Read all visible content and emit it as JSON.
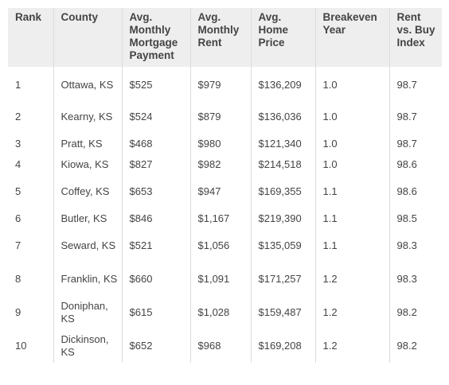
{
  "columns": {
    "rank": "Rank",
    "county": "County",
    "mortgage": "Avg. Monthly Mortgage Payment",
    "rent": "Avg. Monthly Rent",
    "home_price": "Avg. Home Price",
    "breakeven": "Breakeven Year",
    "index": "Rent vs. Buy Index"
  },
  "rows": [
    {
      "rank": "1",
      "county": "Ottawa, KS",
      "mortgage": "$525",
      "rent": "$979",
      "home_price": "$136,209",
      "breakeven": "1.0",
      "index": "98.7"
    },
    {
      "rank": "2",
      "county": "Kearny, KS",
      "mortgage": "$524",
      "rent": "$879",
      "home_price": "$136,036",
      "breakeven": "1.0",
      "index": "98.7"
    },
    {
      "rank": "3",
      "county": "Pratt, KS",
      "mortgage": "$468",
      "rent": "$980",
      "home_price": "$121,340",
      "breakeven": "1.0",
      "index": "98.7"
    },
    {
      "rank": "4",
      "county": "Kiowa, KS",
      "mortgage": "$827",
      "rent": "$982",
      "home_price": "$214,518",
      "breakeven": "1.0",
      "index": "98.6"
    },
    {
      "rank": "5",
      "county": "Coffey, KS",
      "mortgage": "$653",
      "rent": "$947",
      "home_price": "$169,355",
      "breakeven": "1.1",
      "index": "98.6"
    },
    {
      "rank": "6",
      "county": "Butler, KS",
      "mortgage": "$846",
      "rent": "$1,167",
      "home_price": "$219,390",
      "breakeven": "1.1",
      "index": "98.5"
    },
    {
      "rank": "7",
      "county": "Seward, KS",
      "mortgage": "$521",
      "rent": "$1,056",
      "home_price": "$135,059",
      "breakeven": "1.1",
      "index": "98.3"
    },
    {
      "rank": "8",
      "county": "Franklin, KS",
      "mortgage": "$660",
      "rent": "$1,091",
      "home_price": "$171,257",
      "breakeven": "1.2",
      "index": "98.3"
    },
    {
      "rank": "9",
      "county": "Doniphan, KS",
      "mortgage": "$615",
      "rent": "$1,028",
      "home_price": "$159,487",
      "breakeven": "1.2",
      "index": "98.2"
    },
    {
      "rank": "10",
      "county": "Dickinson, KS",
      "mortgage": "$652",
      "rent": "$968",
      "home_price": "$169,208",
      "breakeven": "1.2",
      "index": "98.2"
    }
  ]
}
